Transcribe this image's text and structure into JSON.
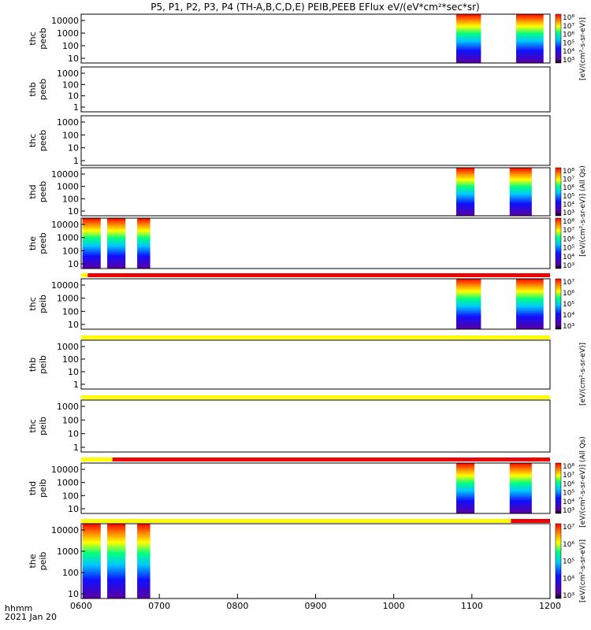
{
  "title": "P5, P1, P2, P3, P4 (TH-A,B,C,D,E) PEIB,PEEB EFlux eV/(eV*cm²*sec*sr)",
  "footer": {
    "time_label": "hhmm",
    "date_label": "2021 Jan 20"
  },
  "colorbar_unit": "[eV/(cm²-s-sr-eV)]",
  "colorbar_unit_allqs": "[eV/(cm²-s-sr-eV)] (All Qs)",
  "colors": {
    "flag_red": "#ee0000",
    "flag_yellow": "#ffff00",
    "background": "#ffffff",
    "spectrogram_scale": [
      "#5a00a0",
      "#1010ff",
      "#00c8ff",
      "#00ff80",
      "#ffff00",
      "#ff8000",
      "#ff0000"
    ]
  },
  "chart_data": {
    "type": "heatmap",
    "x_axis": {
      "range": [
        "0600",
        "1200"
      ],
      "tick_labels": [
        "0600",
        "0700",
        "0800",
        "0900",
        "1000",
        "1100",
        "1200"
      ],
      "label": "hhmm"
    },
    "panels": [
      {
        "probe": "thc",
        "ylabel": [
          "thc",
          "peeb"
        ],
        "ytick_labels": [
          "10",
          "100",
          "1000",
          "10000"
        ],
        "yscale": "log",
        "data_intervals": [
          [
            "1048",
            "1107"
          ],
          [
            "1134",
            "1155"
          ]
        ],
        "colorbar": {
          "labels": [
            "10³",
            "10⁴",
            "10⁵",
            "10⁶",
            "10⁷",
            "10⁸"
          ]
        }
      },
      {
        "probe": "thb",
        "ylabel": [
          "thb",
          "peeb"
        ],
        "ytick_labels": [
          "1",
          "10",
          "100",
          "1000"
        ],
        "yscale": "log",
        "data_intervals": []
      },
      {
        "probe": "thc",
        "ylabel": [
          "thc",
          "peeb"
        ],
        "ytick_labels": [
          "1",
          "10",
          "100",
          "1000"
        ],
        "yscale": "log",
        "data_intervals": []
      },
      {
        "probe": "thd",
        "ylabel": [
          "thd",
          "peeb"
        ],
        "ytick_labels": [
          "10",
          "100",
          "1000",
          "10000"
        ],
        "yscale": "log",
        "data_intervals": [
          [
            "1048",
            "1102"
          ],
          [
            "1129",
            "1146"
          ]
        ],
        "colorbar": {
          "labels": [
            "10³",
            "10⁴",
            "10⁵",
            "10⁶",
            "10⁷",
            "10⁸"
          ]
        }
      },
      {
        "probe": "the",
        "ylabel": [
          "the",
          "peeb"
        ],
        "ytick_labels": [
          "10",
          "100",
          "1000",
          "10000"
        ],
        "yscale": "log",
        "data_intervals": [
          [
            "0601",
            "0615"
          ],
          [
            "0620",
            "0634"
          ],
          [
            "0643",
            "0653"
          ]
        ],
        "colorbar": {
          "labels": [
            "10³",
            "10⁴",
            "10⁵",
            "10⁶",
            "10⁷",
            "10⁸"
          ]
        },
        "flag_bar": [
          {
            "from": "0600",
            "to": "0605",
            "color": "yellow"
          },
          {
            "from": "0605",
            "to": "1200",
            "color": "red"
          }
        ]
      },
      {
        "probe": "thc",
        "ylabel": [
          "thc",
          "peib"
        ],
        "ytick_labels": [
          "10",
          "100",
          "1000",
          "10000"
        ],
        "yscale": "log",
        "data_intervals": [
          [
            "1048",
            "1107"
          ],
          [
            "1134",
            "1155"
          ]
        ],
        "colorbar": {
          "labels": [
            "10³",
            "10⁴",
            "10⁵",
            "10⁶",
            "10⁷"
          ]
        },
        "flag_bar": [
          {
            "from": "0600",
            "to": "1200",
            "color": "yellow"
          }
        ]
      },
      {
        "probe": "thb",
        "ylabel": [
          "thb",
          "peib"
        ],
        "ytick_labels": [
          "1",
          "10",
          "100",
          "1000"
        ],
        "yscale": "log",
        "data_intervals": [],
        "flag_bar": [
          {
            "from": "0600",
            "to": "1200",
            "color": "yellow"
          }
        ]
      },
      {
        "probe": "thc",
        "ylabel": [
          "thc",
          "peib"
        ],
        "ytick_labels": [
          "1",
          "10",
          "100",
          "1000"
        ],
        "yscale": "log",
        "data_intervals": [],
        "flag_bar": [
          {
            "from": "0600",
            "to": "0624",
            "color": "yellow"
          },
          {
            "from": "0624",
            "to": "1200",
            "color": "red"
          }
        ]
      },
      {
        "probe": "thd",
        "ylabel": [
          "thd",
          "peib"
        ],
        "ytick_labels": [
          "10",
          "100",
          "1000",
          "10000"
        ],
        "yscale": "log",
        "data_intervals": [
          [
            "1048",
            "1102"
          ],
          [
            "1129",
            "1146"
          ]
        ],
        "colorbar": {
          "labels": [
            "10³",
            "10⁴",
            "10⁵",
            "10⁶",
            "10⁷",
            "10⁸"
          ]
        },
        "flag_bar": [
          {
            "from": "0600",
            "to": "1130",
            "color": "yellow"
          },
          {
            "from": "1130",
            "to": "1200",
            "color": "red"
          }
        ]
      },
      {
        "probe": "the",
        "ylabel": [
          "the",
          "peib"
        ],
        "ytick_labels": [
          "10",
          "100",
          "1000",
          "10000"
        ],
        "yscale": "log",
        "data_intervals": [
          [
            "0601",
            "0615"
          ],
          [
            "0620",
            "0634"
          ],
          [
            "0643",
            "0653"
          ]
        ],
        "colorbar": {
          "labels": [
            "10³",
            "10⁴",
            "10⁵",
            "10⁶",
            "10⁷"
          ]
        }
      }
    ]
  }
}
